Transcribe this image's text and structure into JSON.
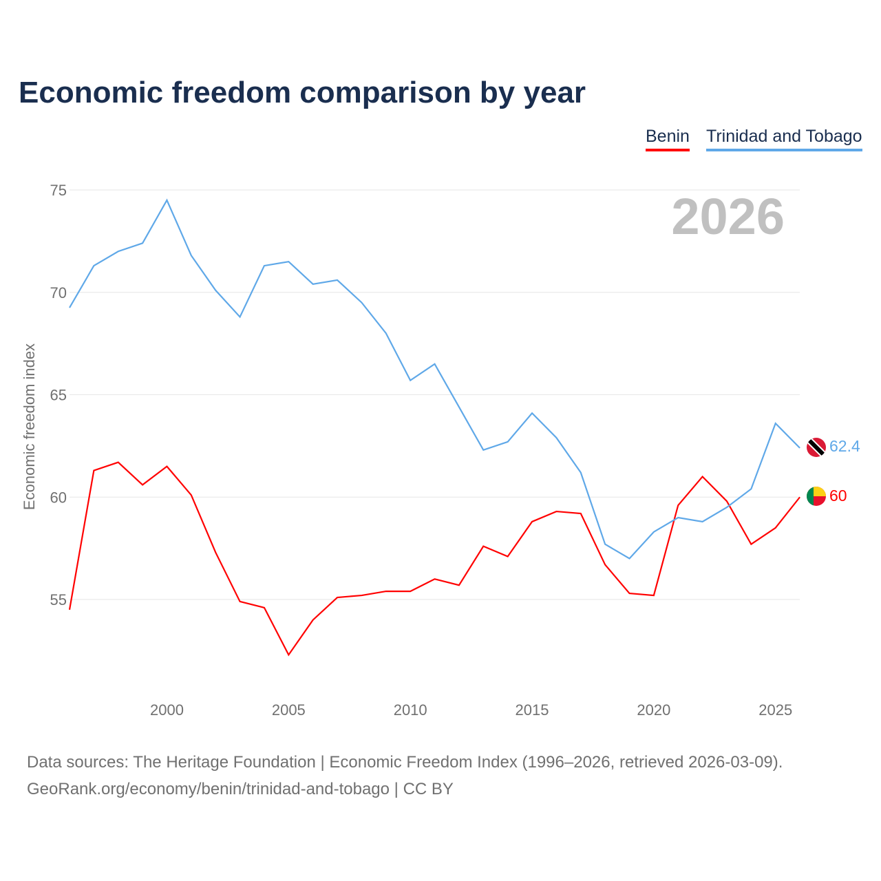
{
  "title": "Economic freedom comparison by year",
  "footer": {
    "line1": "Data sources: The Heritage Foundation | Economic Freedom Index (1996–2026, retrieved 2026-03-09).",
    "line2": "GeoRank.org/economy/benin/trinidad-and-tobago | CC BY"
  },
  "chart_data": {
    "type": "line",
    "title": "Economic freedom comparison by year",
    "xlabel": "",
    "ylabel": "Economic freedom index",
    "watermark_year": "2026",
    "x": [
      1996,
      1997,
      1998,
      1999,
      2000,
      2001,
      2002,
      2003,
      2004,
      2005,
      2006,
      2007,
      2008,
      2009,
      2010,
      2011,
      2012,
      2013,
      2014,
      2015,
      2016,
      2017,
      2018,
      2019,
      2020,
      2021,
      2022,
      2023,
      2024,
      2025,
      2026
    ],
    "xticks": [
      "2000",
      "2005",
      "2010",
      "2015",
      "2020",
      "2025"
    ],
    "yticks": [
      "55",
      "60",
      "65",
      "70",
      "75"
    ],
    "ylim": [
      50.3,
      75.5
    ],
    "xlim": [
      1996,
      2026
    ],
    "grid": true,
    "legend_position": "top-right",
    "series": [
      {
        "name": "Benin",
        "color": "#ff0000",
        "end_label": "60",
        "values": [
          54.5,
          61.3,
          61.7,
          60.6,
          61.5,
          60.1,
          57.3,
          54.9,
          54.6,
          52.3,
          54.0,
          55.1,
          55.2,
          55.4,
          55.4,
          56.0,
          55.7,
          57.6,
          57.1,
          58.8,
          59.3,
          59.2,
          56.7,
          55.3,
          55.2,
          59.6,
          61.0,
          59.8,
          57.7,
          58.5,
          60.0
        ]
      },
      {
        "name": "Trinidad and Tobago",
        "color": "#5fa8e8",
        "end_label": "62.4",
        "values": [
          69.25,
          71.3,
          72.0,
          72.4,
          74.5,
          71.8,
          70.1,
          68.8,
          71.3,
          71.5,
          70.4,
          70.6,
          69.5,
          68.0,
          65.7,
          66.5,
          64.4,
          62.3,
          62.7,
          64.1,
          62.9,
          61.2,
          57.7,
          57.0,
          58.3,
          59.0,
          58.8,
          59.5,
          60.4,
          63.6,
          62.4
        ]
      }
    ]
  }
}
